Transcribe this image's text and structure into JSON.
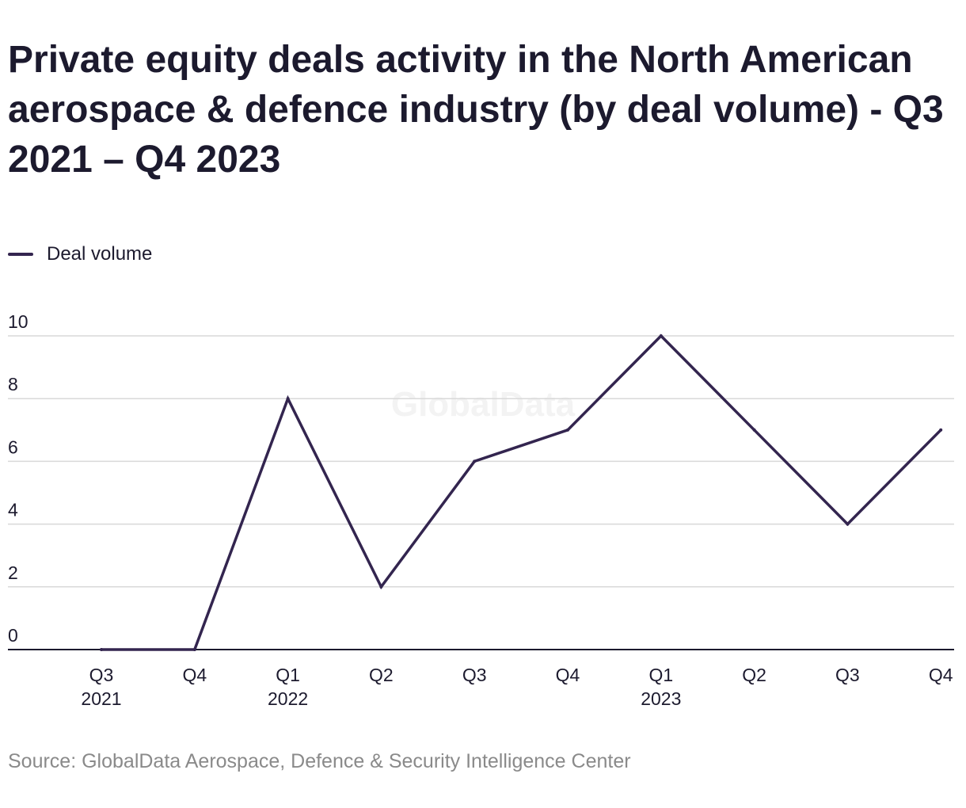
{
  "chart_data": {
    "type": "line",
    "title": "Private equity deals activity in the North American aerospace & defence industry (by deal volume) - Q3 2021 – Q4 2023",
    "legend": "top-left",
    "grid": true,
    "ylim": [
      0,
      10
    ],
    "yticks": [
      "0",
      "2",
      "4",
      "6",
      "8",
      "10"
    ],
    "x": [
      {
        "quarter": "Q3",
        "year": "2021"
      },
      {
        "quarter": "Q4",
        "year": ""
      },
      {
        "quarter": "Q1",
        "year": "2022"
      },
      {
        "quarter": "Q2",
        "year": ""
      },
      {
        "quarter": "Q3",
        "year": ""
      },
      {
        "quarter": "Q4",
        "year": ""
      },
      {
        "quarter": "Q1",
        "year": "2023"
      },
      {
        "quarter": "Q2",
        "year": ""
      },
      {
        "quarter": "Q3",
        "year": ""
      },
      {
        "quarter": "Q4",
        "year": ""
      }
    ],
    "series": [
      {
        "name": "Deal volume",
        "color": "#33254f",
        "values": [
          0,
          0,
          8,
          2,
          6,
          7,
          10,
          7,
          4,
          7
        ]
      }
    ],
    "source": "Source: GlobalData Aerospace, Defence & Security Intelligence Center",
    "watermark": "GlobalData"
  }
}
